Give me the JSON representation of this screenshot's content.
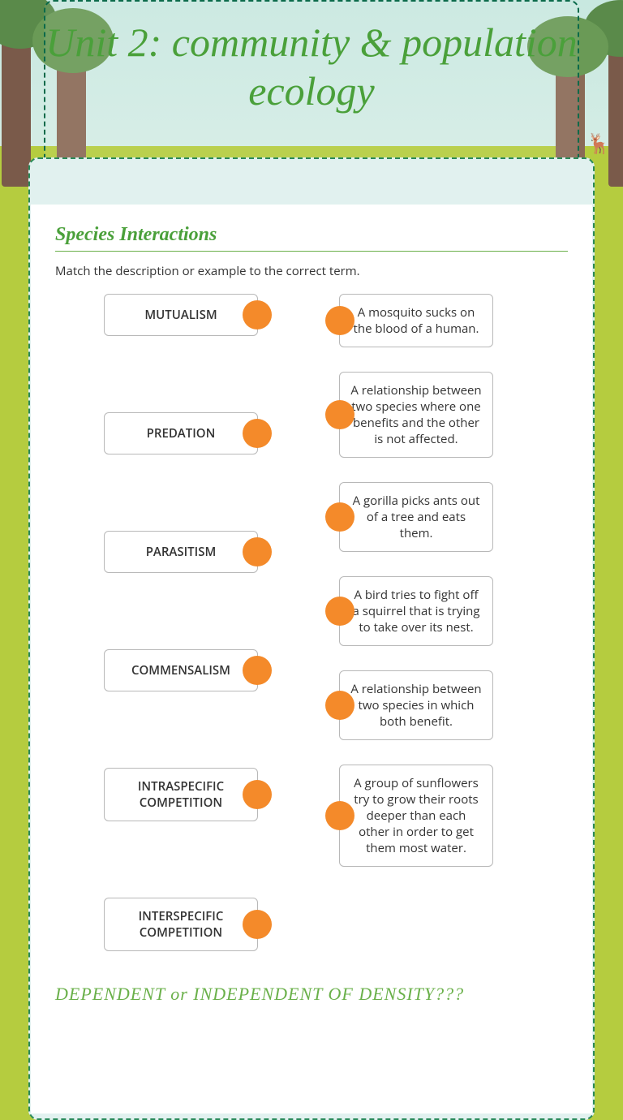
{
  "colors": {
    "accent_green": "#4aa03a",
    "border_green": "#6ab04a",
    "dashed_border": "#2a8a5a",
    "dot_orange": "#f48a2a",
    "grass": "#b5cc3f",
    "sky": "#d5ede5",
    "box_border": "#b8b8b8",
    "text": "#333333",
    "content_bg": "#ffffff",
    "panel_bg": "#e1f1ef"
  },
  "header": {
    "title": "Unit 2: community & population ecology"
  },
  "section": {
    "title": "Species Interactions",
    "instruction": "Match the description or example to the correct term.",
    "terms": [
      "MUTUALISM",
      "PREDATION",
      "PARASITISM",
      "COMMENSALISM",
      "INTRASPECIFIC COMPETITION",
      "INTERSPECIFIC COMPETITION"
    ],
    "descriptions": [
      "A mosquito sucks on the blood of a human.",
      "A relationship between two species where one benefits and the other is not affected.",
      "A gorilla picks ants out of a tree and eats them.",
      "A bird tries to fight off a squirrel that is trying to take over its nest.",
      "A relationship between two species in which both benefit.",
      "A group of sunflowers try to grow their roots deeper than each other in order to get them most water."
    ]
  },
  "footer_question": "DEPENDENT or INDEPENDENT OF DENSITY???"
}
